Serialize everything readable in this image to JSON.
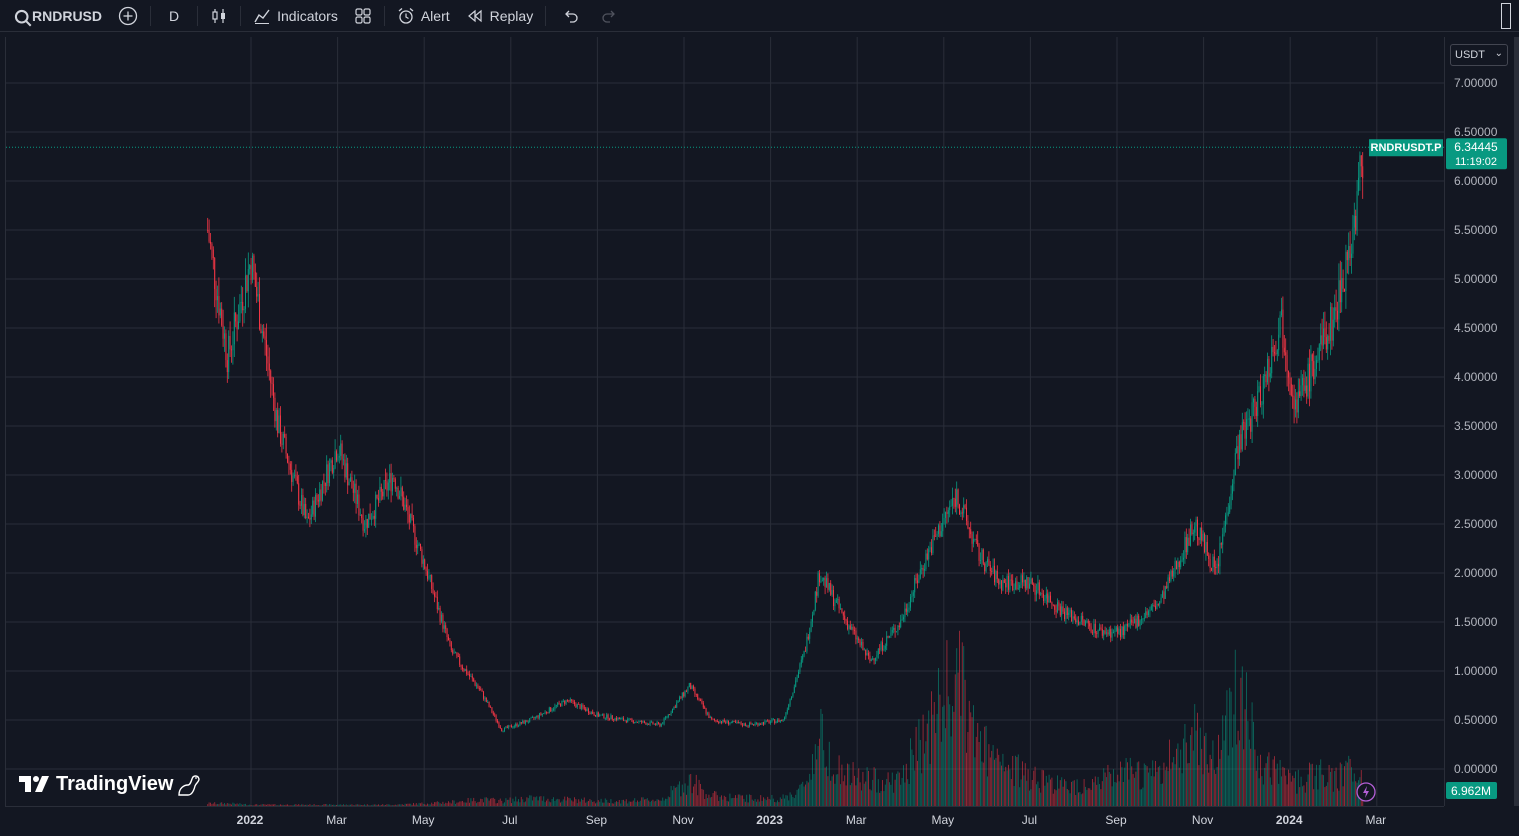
{
  "toolbar": {
    "symbol": "RNDRUSD",
    "interval": "D",
    "indicators_label": "Indicators",
    "alert_label": "Alert",
    "replay_label": "Replay"
  },
  "currency_selector": {
    "value": "USDT"
  },
  "price_axis": {
    "ticks": [
      "7.00000",
      "6.50000",
      "6.00000",
      "5.50000",
      "5.00000",
      "4.50000",
      "4.00000",
      "3.50000",
      "3.00000",
      "2.50000",
      "2.00000",
      "1.50000",
      "1.00000",
      "0.50000",
      "0.00000"
    ]
  },
  "time_axis": {
    "labels": [
      "2022",
      "Mar",
      "May",
      "Jul",
      "Sep",
      "Nov",
      "2023",
      "Mar",
      "May",
      "Jul",
      "Sep",
      "Nov",
      "2024",
      "Mar"
    ]
  },
  "last_price": {
    "symbol_tag": "RNDRUSDT.P",
    "price": "6.34445",
    "countdown": "11:19:02",
    "volume": "6.962M",
    "color": "#089981"
  },
  "logo": {
    "text": "TradingView"
  },
  "colors": {
    "up": "#089981",
    "down": "#f23645",
    "background": "#131722",
    "grid": "#2a2e39"
  },
  "chart_data": {
    "type": "candlestick",
    "symbol": "RNDRUSDT.P",
    "interval": "D",
    "currency": "USDT",
    "ylim": [
      0,
      7
    ],
    "x_range": [
      "2021-11",
      "2024-03"
    ],
    "last_price": 6.34445,
    "last_volume": "6.962M",
    "series": [
      {
        "name": "price",
        "x": [
          "2021-12-01",
          "2021-12-15",
          "2022-01-01",
          "2022-01-20",
          "2022-02-10",
          "2022-03-01",
          "2022-03-20",
          "2022-04-10",
          "2022-05-01",
          "2022-05-20",
          "2022-06-10",
          "2022-06-25",
          "2022-07-15",
          "2022-08-10",
          "2022-09-01",
          "2022-09-20",
          "2022-10-15",
          "2022-11-05",
          "2022-11-20",
          "2022-12-15",
          "2023-01-10",
          "2023-01-25",
          "2023-02-05",
          "2023-02-20",
          "2023-03-10",
          "2023-04-01",
          "2023-04-20",
          "2023-05-10",
          "2023-05-25",
          "2023-06-10",
          "2023-07-01",
          "2023-07-25",
          "2023-08-20",
          "2023-09-05",
          "2023-10-01",
          "2023-10-25",
          "2023-11-10",
          "2023-11-25",
          "2023-12-10",
          "2023-12-25",
          "2024-01-05",
          "2024-01-20",
          "2024-02-01",
          "2024-02-15",
          "2024-02-22"
        ],
        "values": [
          5.5,
          4.2,
          5.2,
          3.5,
          2.5,
          3.3,
          2.5,
          3.0,
          2.1,
          1.2,
          0.8,
          0.4,
          0.5,
          0.7,
          0.55,
          0.5,
          0.45,
          0.85,
          0.5,
          0.45,
          0.5,
          1.2,
          2.0,
          1.6,
          1.1,
          1.5,
          2.2,
          2.8,
          2.2,
          1.9,
          1.9,
          1.6,
          1.4,
          1.4,
          1.7,
          2.5,
          2.0,
          3.3,
          3.8,
          4.6,
          3.7,
          4.2,
          4.6,
          5.5,
          6.34
        ]
      },
      {
        "name": "volume",
        "values": [
          0.02,
          0.02,
          0.01,
          0.01,
          0.01,
          0.01,
          0.01,
          0.01,
          0.02,
          0.03,
          0.05,
          0.04,
          0.06,
          0.05,
          0.04,
          0.04,
          0.05,
          0.2,
          0.08,
          0.06,
          0.06,
          0.15,
          0.55,
          0.25,
          0.2,
          0.2,
          0.6,
          1.0,
          0.5,
          0.3,
          0.25,
          0.15,
          0.2,
          0.25,
          0.25,
          0.6,
          0.35,
          1.0,
          0.3,
          0.25,
          0.2,
          0.25,
          0.2,
          0.3,
          0.25
        ]
      }
    ]
  }
}
